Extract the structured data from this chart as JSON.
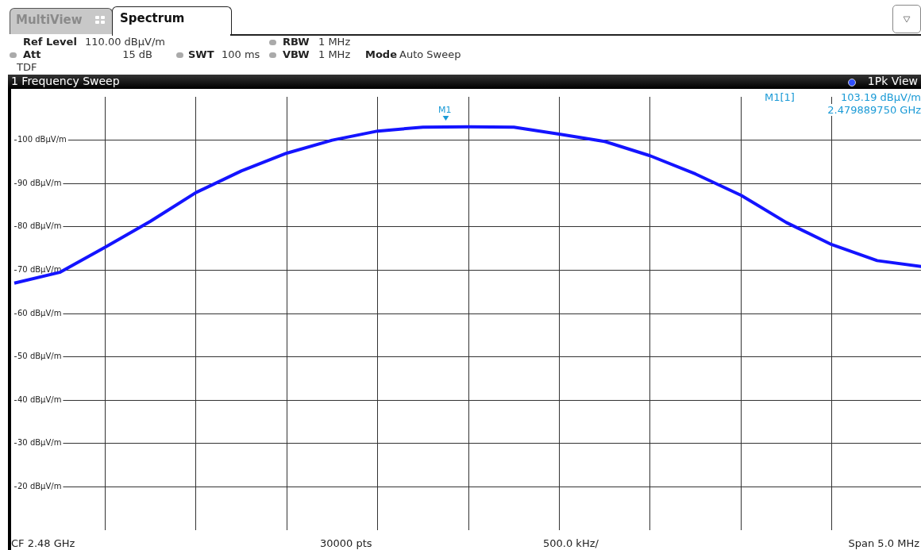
{
  "chart_data": {
    "type": "line",
    "title": "1 Frequency Sweep",
    "categories": [
      null,
      null,
      null,
      null,
      null,
      null,
      null,
      null,
      null,
      null,
      null,
      null,
      null,
      null,
      null,
      null,
      null,
      null,
      null,
      null,
      null
    ],
    "series": [
      {
        "color": "#1414ff",
        "values": [
          67,
          69.5,
          75.3,
          81.3,
          87.9,
          92.9,
          97,
          100,
          102.1,
          103,
          103.1,
          103,
          101.4,
          99.7,
          96.4,
          92.2,
          87.3,
          81,
          75.9,
          72.2,
          70.8
        ]
      }
    ],
    "ylim": [
      10,
      110
    ],
    "yticks": [
      {
        "value": 20,
        "label": "20 dBµV/m"
      },
      {
        "value": 30,
        "label": "30 dBµV/m"
      },
      {
        "value": 40,
        "label": "40 dBµV/m"
      },
      {
        "value": 50,
        "label": "50 dBµV/m"
      },
      {
        "value": 60,
        "label": "60 dBµV/m"
      },
      {
        "value": 70,
        "label": "70 dBµV/m"
      },
      {
        "value": 80,
        "label": "80 dBµV/m"
      },
      {
        "value": 90,
        "label": "90 dBµV/m"
      },
      {
        "value": 100,
        "label": "100 dBµV/m"
      }
    ],
    "tick_labels": "y",
    "grid": true,
    "legend": false,
    "marker": "none",
    "line_style": "solid",
    "annotations": [
      "MultiView",
      "Spectrum",
      "Ref Level",
      "110.00 dBµV/m",
      "Att",
      "15 dB",
      "SWT",
      "100 ms",
      "RBW",
      "1 MHz",
      "VBW",
      "1 MHz",
      "Mode",
      "Auto Sweep",
      "TDF",
      "1Pk View",
      "M1[1]",
      "103.19 dBµV/m",
      "2.479889750 GHz",
      "CF 2.48 GHz",
      "30000 pts",
      "500.0 kHz/",
      "Span 5.0 MHz",
      "M1"
    ]
  }
}
